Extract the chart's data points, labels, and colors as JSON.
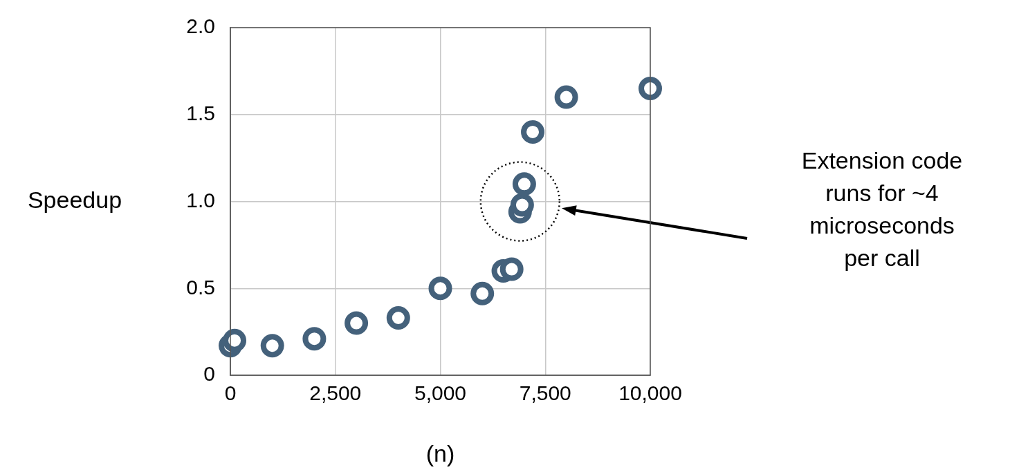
{
  "chart_data": {
    "type": "scatter",
    "xlabel": "(n)",
    "ylabel": "Speedup",
    "x": [
      0,
      100,
      1000,
      2000,
      3000,
      4000,
      5000,
      6000,
      6500,
      6700,
      6900,
      6950,
      7000,
      7200,
      8000,
      10000
    ],
    "series": [
      {
        "color": "#44617b",
        "values": [
          0.17,
          0.2,
          0.17,
          0.21,
          0.3,
          0.33,
          0.5,
          0.47,
          0.6,
          0.61,
          0.94,
          0.98,
          1.1,
          1.4,
          1.6,
          1.65
        ]
      }
    ],
    "xlim": [
      0,
      10000
    ],
    "xticks": [
      0,
      {
        "value": 2500,
        "label": "2,500"
      },
      {
        "value": 5000,
        "label": "5,000"
      },
      {
        "value": 7500,
        "label": "7,500"
      },
      {
        "value": 10000,
        "label": "10,000"
      }
    ],
    "ylim": [
      0,
      2
    ],
    "yticks": [
      0,
      0.5,
      {
        "value": 1,
        "label": "1.0"
      },
      1.5,
      {
        "value": 2,
        "label": "2.0"
      }
    ],
    "grid": true,
    "legend": false,
    "marker": "circle",
    "annotations": [
      "Extension code runs for ~4 microseconds per call"
    ]
  }
}
